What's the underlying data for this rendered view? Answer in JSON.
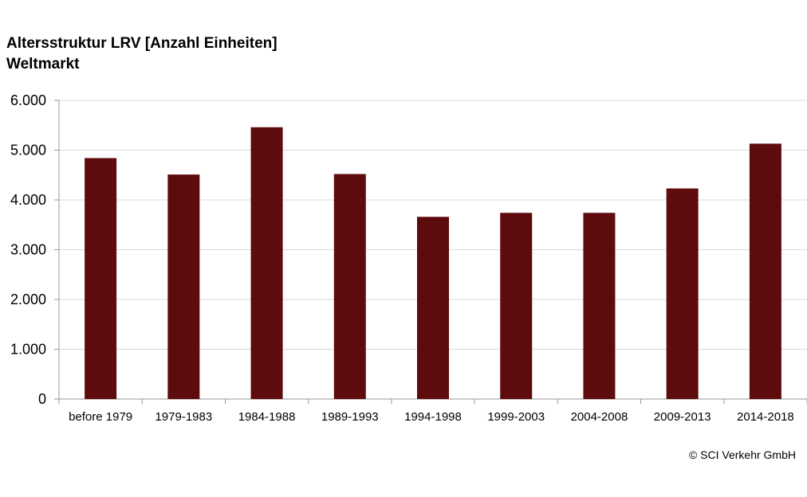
{
  "chart_data": {
    "type": "bar",
    "title": "Altersstruktur LRV [Anzahl Einheiten]",
    "subtitle": "Weltmarkt",
    "xlabel": "",
    "ylabel": "",
    "categories": [
      "before 1979",
      "1979-1983",
      "1984-1988",
      "1989-1993",
      "1994-1998",
      "1999-2003",
      "2004-2008",
      "2009-2013",
      "2014-2018"
    ],
    "values": [
      4840,
      4510,
      5460,
      4520,
      3660,
      3740,
      3740,
      4230,
      5130
    ],
    "ylim": [
      0,
      6000
    ],
    "yticks": [
      0,
      1000,
      2000,
      3000,
      4000,
      5000,
      6000
    ],
    "ytick_labels": [
      "0",
      "1.000",
      "2.000",
      "3.000",
      "4.000",
      "5.000",
      "6.000"
    ],
    "grid": true,
    "bar_color": "#5e0b0e"
  },
  "credit": "© SCI Verkehr GmbH"
}
